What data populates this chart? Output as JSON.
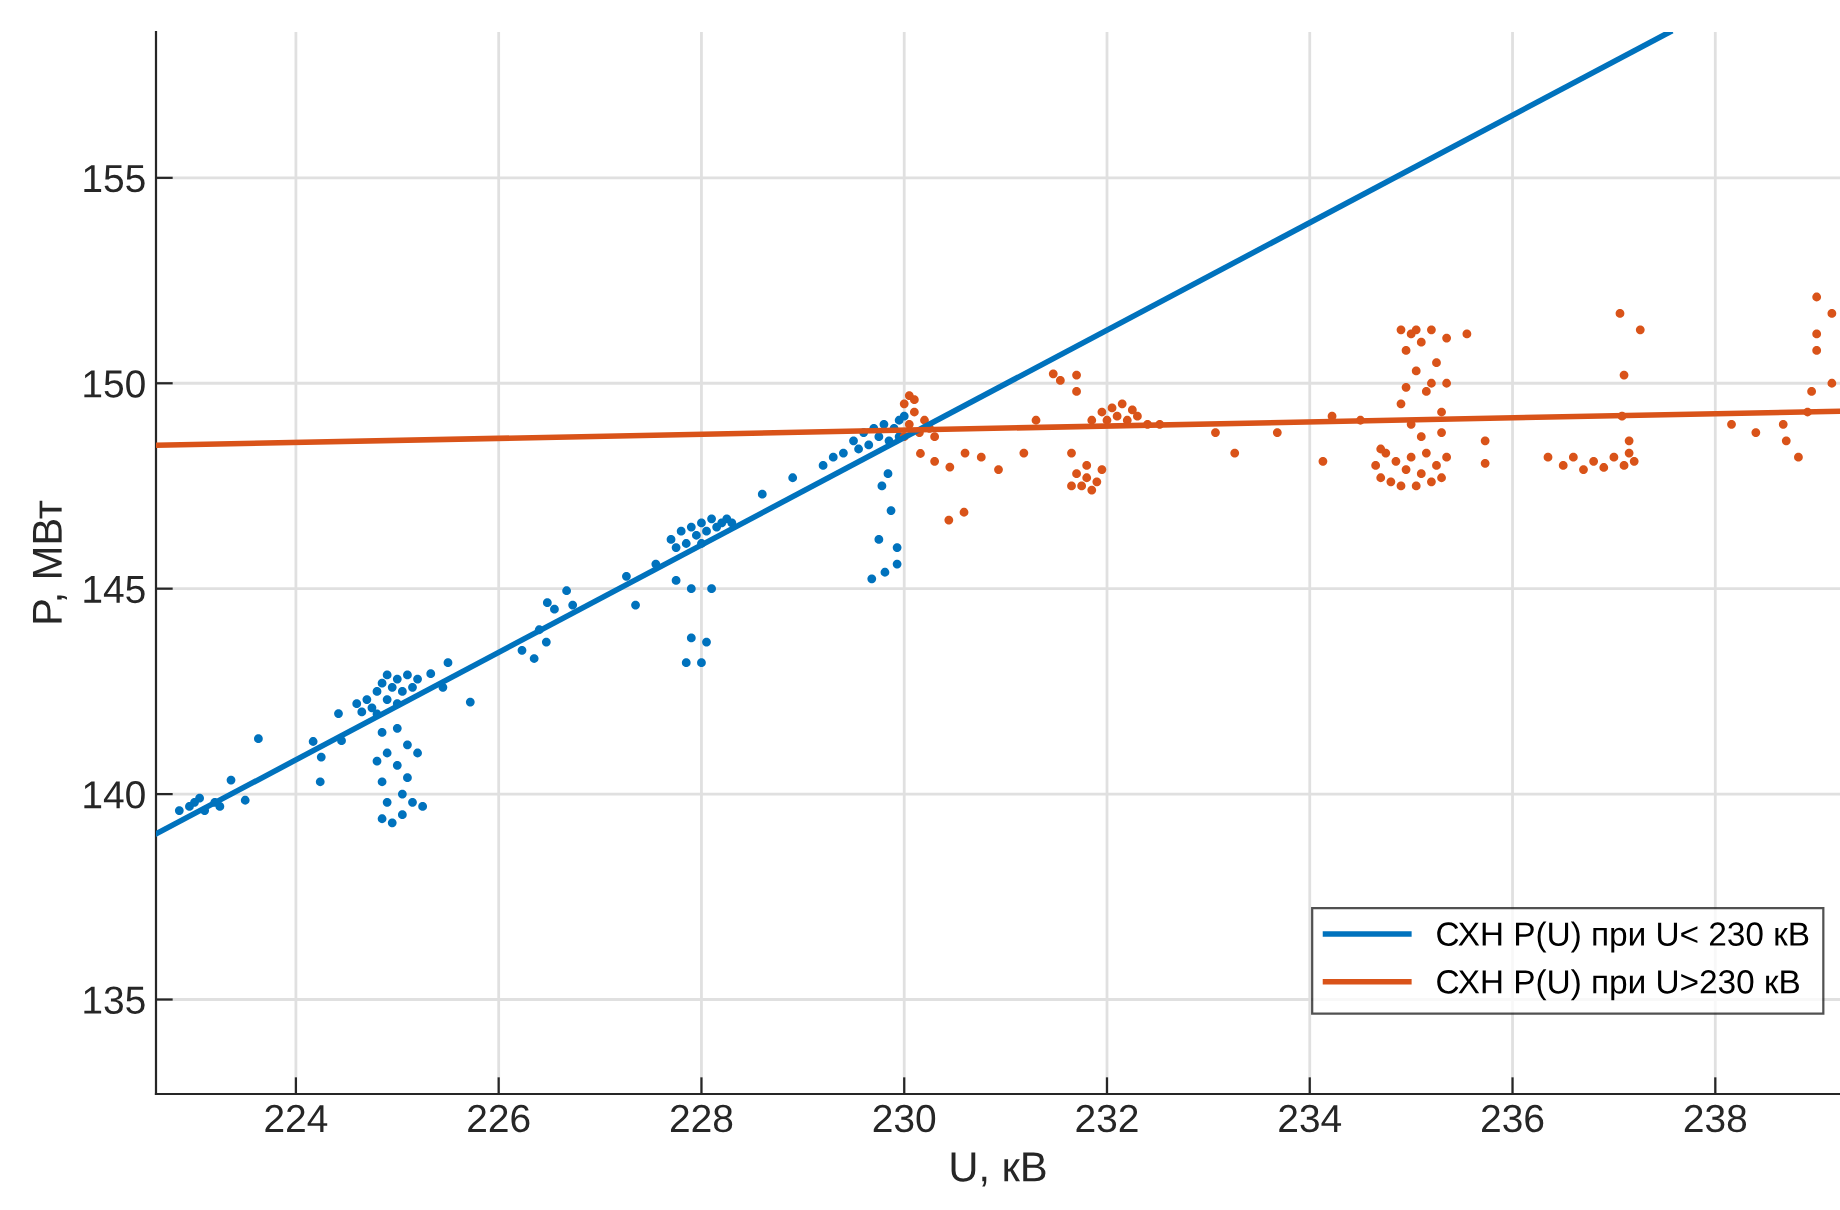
{
  "chart_data": {
    "type": "scatter",
    "xlabel": "U, кВ",
    "ylabel": "P, МВт",
    "xlim": [
      222.62,
      239.23
    ],
    "ylim": [
      132.7,
      158.55
    ],
    "xticks": [
      224,
      226,
      228,
      230,
      232,
      234,
      236,
      238
    ],
    "yticks": [
      135,
      140,
      145,
      150,
      155
    ],
    "grid": true,
    "legend": "bottom right",
    "series": [
      {
        "marker": "circle",
        "color": "#0072bd",
        "x": [
          222.85,
          222.95,
          223.0,
          223.1,
          223.2,
          223.25,
          223.05,
          223.36,
          223.5,
          223.63,
          224.17,
          224.24,
          224.25,
          224.42,
          224.45,
          224.6,
          224.65,
          224.7,
          224.75,
          224.8,
          224.8,
          224.85,
          224.9,
          224.9,
          224.95,
          225.0,
          225.0,
          225.05,
          225.1,
          225.15,
          225.2,
          224.85,
          224.9,
          224.85,
          224.9,
          224.85,
          224.95,
          225.0,
          225.0,
          225.05,
          225.05,
          225.1,
          225.1,
          225.15,
          225.2,
          225.25,
          224.8,
          225.33,
          225.5,
          225.72,
          225.45,
          226.23,
          226.35,
          226.4,
          226.47,
          226.48,
          226.55,
          226.67,
          226.73,
          227.26,
          227.35,
          227.55,
          227.7,
          227.75,
          227.8,
          227.85,
          227.9,
          227.95,
          228.0,
          228.0,
          228.05,
          228.1,
          228.15,
          228.2,
          228.25,
          228.3,
          227.75,
          227.9,
          227.9,
          228.05,
          227.85,
          228.0,
          228.1,
          228.6,
          228.9,
          229.2,
          229.3,
          229.4,
          229.5,
          229.55,
          229.6,
          229.65,
          229.7,
          229.75,
          229.8,
          229.85,
          229.9,
          229.95,
          229.95,
          230.0,
          229.68,
          229.81,
          229.93,
          229.75,
          229.87,
          229.78,
          229.84,
          229.93
        ],
        "values": [
          139.6,
          139.7,
          139.8,
          139.6,
          139.8,
          139.7,
          139.9,
          140.34,
          139.85,
          141.35,
          141.28,
          140.3,
          140.9,
          141.96,
          141.3,
          142.2,
          142.0,
          142.3,
          142.1,
          142.5,
          141.95,
          142.7,
          142.3,
          142.9,
          142.6,
          142.2,
          142.8,
          142.5,
          142.9,
          142.6,
          142.8,
          141.5,
          141.0,
          140.3,
          139.8,
          139.4,
          139.3,
          141.6,
          140.7,
          140.0,
          139.5,
          141.2,
          140.4,
          139.8,
          141.0,
          139.7,
          140.8,
          142.93,
          143.2,
          142.24,
          142.6,
          143.5,
          143.3,
          144.0,
          143.7,
          144.66,
          144.5,
          144.95,
          144.6,
          145.3,
          144.6,
          145.6,
          146.2,
          146.0,
          146.4,
          146.1,
          146.5,
          146.3,
          146.6,
          146.1,
          146.4,
          146.7,
          146.5,
          146.6,
          146.7,
          146.6,
          145.2,
          145.0,
          143.8,
          143.7,
          143.2,
          143.2,
          145.0,
          147.3,
          147.7,
          148.0,
          148.2,
          148.3,
          148.6,
          148.4,
          148.8,
          148.5,
          148.9,
          148.7,
          149.0,
          148.6,
          148.9,
          149.1,
          148.7,
          149.2,
          145.24,
          145.4,
          145.6,
          146.2,
          146.9,
          147.5,
          147.8,
          146.0
        ]
      },
      {
        "marker": "circle",
        "color": "#d95319",
        "x": [
          230.0,
          230.05,
          230.05,
          230.1,
          230.15,
          230.1,
          230.2,
          230.25,
          230.3,
          230.0,
          230.16,
          230.3,
          230.45,
          230.6,
          230.44,
          230.59,
          230.76,
          230.93,
          231.18,
          231.3,
          231.47,
          231.54,
          231.7,
          231.7,
          231.65,
          231.7,
          231.75,
          231.8,
          231.85,
          231.9,
          231.95,
          231.8,
          231.65,
          231.85,
          231.95,
          232.0,
          232.05,
          232.1,
          232.15,
          232.2,
          232.25,
          232.3,
          232.4,
          232.52,
          233.07,
          233.26,
          233.68,
          234.13,
          234.22,
          234.5,
          234.65,
          234.7,
          234.75,
          234.8,
          234.85,
          234.9,
          234.95,
          235.0,
          235.05,
          235.1,
          235.15,
          235.2,
          235.25,
          235.3,
          235.35,
          234.7,
          234.9,
          234.95,
          235.0,
          235.05,
          235.1,
          235.15,
          235.2,
          235.25,
          235.3,
          235.35,
          234.9,
          235.0,
          235.1,
          235.3,
          235.2,
          235.05,
          235.35,
          234.95,
          235.55,
          235.73,
          235.73,
          236.35,
          236.5,
          236.6,
          236.7,
          236.8,
          236.9,
          237.0,
          237.1,
          237.15,
          237.2,
          237.06,
          237.1,
          237.26,
          237.08,
          237.15,
          238.16,
          238.4,
          238.67,
          238.7,
          238.82,
          239.0,
          239.15,
          239.0,
          239.0,
          238.95,
          239.15,
          238.91
        ],
        "values": [
          149.5,
          149.7,
          149.0,
          149.3,
          148.8,
          149.6,
          149.1,
          148.9,
          148.7,
          148.7,
          148.29,
          148.1,
          147.96,
          148.3,
          146.67,
          146.86,
          148.2,
          147.9,
          148.3,
          149.1,
          150.23,
          150.07,
          150.2,
          149.8,
          147.5,
          147.8,
          147.5,
          147.7,
          147.4,
          147.6,
          147.9,
          148.0,
          148.3,
          149.1,
          149.3,
          149.1,
          149.4,
          149.2,
          149.5,
          149.1,
          149.35,
          149.2,
          149.0,
          149.0,
          148.8,
          148.3,
          148.8,
          148.1,
          149.2,
          149.1,
          148.0,
          147.7,
          148.3,
          147.6,
          148.1,
          147.5,
          147.9,
          148.2,
          147.5,
          147.8,
          148.3,
          147.6,
          148.0,
          147.7,
          148.2,
          148.4,
          151.3,
          150.8,
          151.2,
          150.3,
          151.0,
          149.8,
          151.3,
          150.5,
          149.3,
          151.1,
          149.5,
          149.0,
          148.7,
          148.8,
          150.0,
          151.3,
          150.0,
          149.9,
          151.2,
          148.6,
          148.05,
          148.2,
          148.0,
          148.2,
          147.9,
          148.1,
          147.95,
          148.2,
          148.0,
          148.3,
          148.1,
          151.7,
          150.2,
          151.3,
          149.2,
          148.6,
          149.0,
          148.8,
          149.0,
          148.6,
          148.2,
          152.1,
          151.7,
          151.2,
          150.8,
          149.8,
          150.0,
          149.3
        ]
      },
      {
        "type": "line",
        "name": "СХН P(U) при U< 230 кВ",
        "color": "#0072bd",
        "x": [
          222.62,
          237.55
        ],
        "values": [
          139.03,
          158.55
        ]
      },
      {
        "type": "line",
        "name": "СХН P(U) при U>230 кВ",
        "color": "#d95319",
        "x": [
          222.62,
          239.23
        ],
        "values": [
          148.49,
          149.32
        ]
      }
    ]
  }
}
